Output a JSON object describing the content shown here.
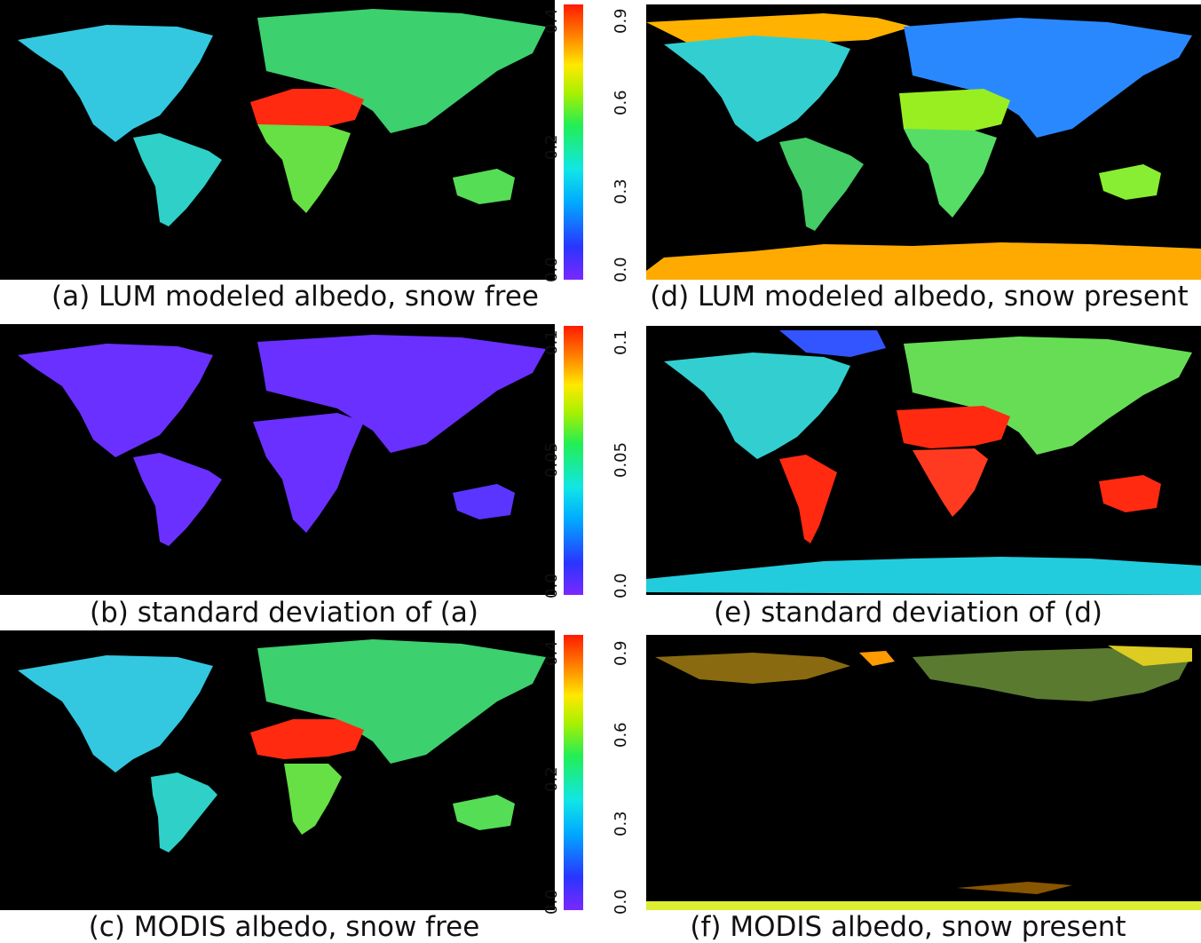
{
  "panels": {
    "a": {
      "caption": "(a) LUM modeled albedo, snow free"
    },
    "b": {
      "caption": "(b) standard deviation of (a)"
    },
    "c": {
      "caption": "(c) MODIS albedo, snow free"
    },
    "d": {
      "caption": "(d) LUM modeled albedo, snow present"
    },
    "e": {
      "caption": "(e) standard deviation of (d)"
    },
    "f": {
      "caption": "(f) MODIS albedo, snow present"
    }
  },
  "colorbars": {
    "row1": {
      "left_ticks": [
        "0.0",
        "0.2",
        "0.4"
      ],
      "right_ticks": [
        "0.0",
        "0.3",
        "0.6",
        "0.9"
      ]
    },
    "row2": {
      "left_ticks": [
        "0.0",
        "0.05",
        "0.1"
      ],
      "right_ticks": [
        "0.0",
        "0.05",
        "0.1"
      ]
    },
    "row3": {
      "left_ticks": [
        "0.0",
        "0.2",
        "0.4"
      ],
      "right_ticks": [
        "0.0",
        "0.3",
        "0.6",
        "0.9"
      ]
    }
  },
  "colors": {
    "background": "#000000",
    "low": "#7a28ff",
    "mid": "#22ee55",
    "high": "#ff1a00"
  }
}
